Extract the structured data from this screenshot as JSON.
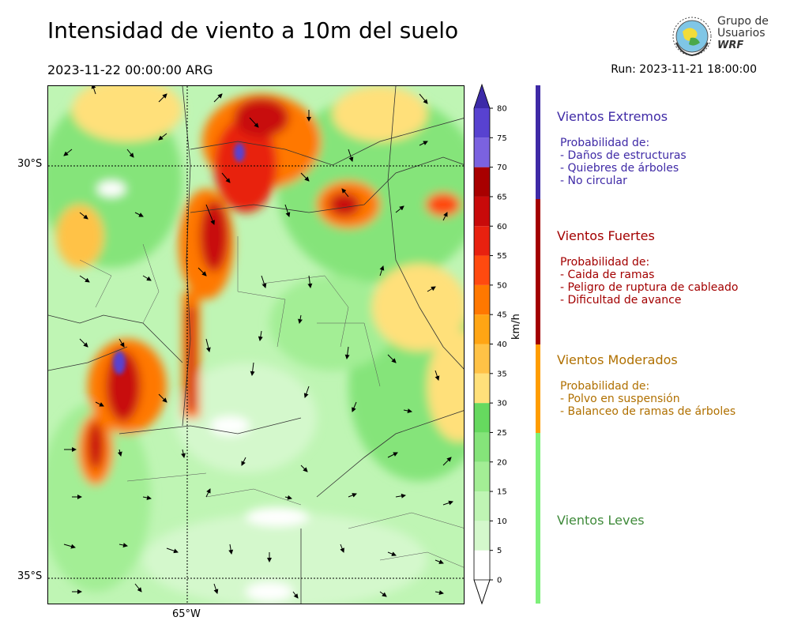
{
  "header": {
    "title": "Intensidad de viento a 10m del suelo",
    "valid_time": "2023-11-22 00:00:00 ARG",
    "run": "Run: 2023-11-21 18:00:00"
  },
  "logo": {
    "line1": "Grupo de",
    "line2": "Usuarios",
    "line3": "WRF"
  },
  "map": {
    "lat_labels": [
      "30°S",
      "35°S"
    ],
    "lon_labels": [
      "65°W"
    ]
  },
  "colorbar": {
    "unit": "km/h",
    "ticks": [
      "0",
      "5",
      "10",
      "15",
      "20",
      "25",
      "30",
      "35",
      "40",
      "45",
      "50",
      "55",
      "60",
      "65",
      "70",
      "75",
      "80"
    ],
    "colors": [
      "#ffffff",
      "#d4f8cc",
      "#bff5b4",
      "#a3ee95",
      "#85e47a",
      "#66d95f",
      "#ffe07a",
      "#ffc246",
      "#ffa514",
      "#ff7800",
      "#ff4a0f",
      "#e8210f",
      "#c80a0a",
      "#a80000",
      "#7b62e0",
      "#5842d0",
      "#4a2eb5"
    ],
    "extend_low_color": "#ffffff",
    "extend_high_color": "#3c2aa8"
  },
  "categories": [
    {
      "title": "Vientos Extremos",
      "color": "#3f2aa6",
      "lines": [
        "Probabilidad de:",
        "- Daños de estructuras",
        "- Quiebres de árboles",
        "- No circular"
      ]
    },
    {
      "title": "Vientos Fuertes",
      "color": "#a30000",
      "lines": [
        "Probabilidad de:",
        "- Caida de ramas",
        "- Peligro de ruptura de cableado",
        "- Dificultad de avance"
      ]
    },
    {
      "title": "Vientos Moderados",
      "color": "#b07000",
      "lines": [
        "Probabilidad de:",
        "- Polvo en suspensión",
        "- Balanceo de ramas de árboles"
      ]
    },
    {
      "title": "Vientos Leves",
      "color": "#3f8a3a",
      "lines": []
    }
  ],
  "category_bar_colors": [
    "#3f2aa6",
    "#a30000",
    "#ff9d00",
    "#7ef07a"
  ]
}
